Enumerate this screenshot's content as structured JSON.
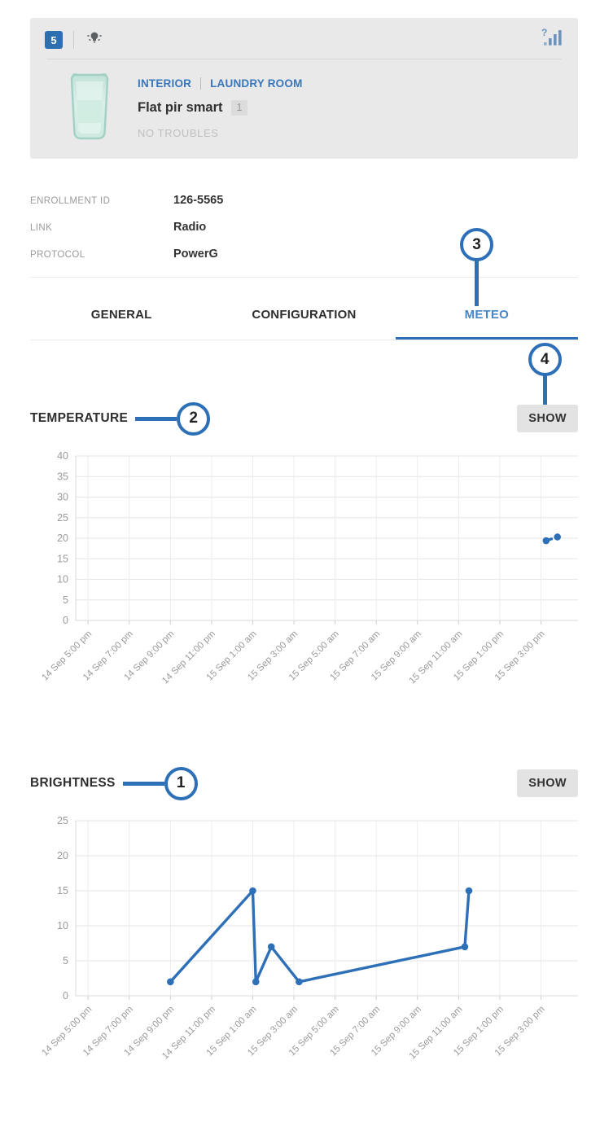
{
  "colors": {
    "accent": "#2e70b8",
    "tab_active": "#4486c8",
    "chart_line": "#2e70b8",
    "header_card_bg": "#e9e9e9",
    "count_badge_bg": "#2e6fb0",
    "signal_icon_blue": "#6e93bd",
    "grid_gray": "#e6e6e6"
  },
  "header": {
    "count_badge": "5",
    "bulb_icon": "bulb-icon",
    "signal_icon": "signal-question-icon",
    "zone_group": "INTERIOR",
    "zone_room": "LAUNDRY ROOM",
    "device_name": "Flat pir smart",
    "device_number_badge": "1",
    "status": "NO TROUBLES"
  },
  "details": [
    {
      "label": "ENROLLMENT ID",
      "value": "126-5565"
    },
    {
      "label": "LINK",
      "value": "Radio"
    },
    {
      "label": "PROTOCOL",
      "value": "PowerG"
    }
  ],
  "tabs": [
    {
      "label": "GENERAL",
      "active": false
    },
    {
      "label": "CONFIGURATION",
      "active": false
    },
    {
      "label": "METEO",
      "active": true
    }
  ],
  "annotations": {
    "brightness_title": "1",
    "temperature_title": "2",
    "meteo_tab": "3",
    "temperature_show": "4"
  },
  "chart_data": [
    {
      "id": "temperature",
      "type": "line",
      "title": "TEMPERATURE",
      "show_button_label": "SHOW",
      "xlabel": "",
      "ylabel": "",
      "ylim": [
        0,
        40
      ],
      "yticks": [
        0,
        5,
        10,
        15,
        20,
        25,
        30,
        35,
        40
      ],
      "grid": true,
      "legend": "none",
      "line_style": "dashed",
      "color": "#2e70b8",
      "x_tick_labels": [
        "14 Sep 5:00 pm",
        "14 Sep 7:00 pm",
        "14 Sep 9:00 pm",
        "14 Sep 11:00 pm",
        "15 Sep 1:00 am",
        "15 Sep 3:00 am",
        "15 Sep 5:00 am",
        "15 Sep 7:00 am",
        "15 Sep 9:00 am",
        "15 Sep 11:00 am",
        "15 Sep 1:00 pm",
        "15 Sep 3:00 pm"
      ],
      "x_tick_offset_hours": [
        0,
        2,
        4,
        6,
        8,
        10,
        12,
        14,
        16,
        18,
        20,
        22
      ],
      "x_range_hours": [
        -0.6,
        23.8
      ],
      "points": [
        {
          "time": "15 Sep ~3:15 pm",
          "offset_hours": 22.25,
          "value": 19.4
        },
        {
          "time": "15 Sep ~3:50 pm",
          "offset_hours": 22.8,
          "value": 20.3
        }
      ]
    },
    {
      "id": "brightness",
      "type": "line",
      "title": "BRIGHTNESS",
      "show_button_label": "SHOW",
      "xlabel": "",
      "ylabel": "",
      "ylim": [
        0,
        25
      ],
      "yticks": [
        0,
        5,
        10,
        15,
        20,
        25
      ],
      "grid": true,
      "legend": "none",
      "line_style": "solid",
      "color": "#2e70b8",
      "x_tick_labels": [
        "14 Sep 5:00 pm",
        "14 Sep 7:00 pm",
        "14 Sep 9:00 pm",
        "14 Sep 11:00 pm",
        "15 Sep 1:00 am",
        "15 Sep 3:00 am",
        "15 Sep 5:00 am",
        "15 Sep 7:00 am",
        "15 Sep 9:00 am",
        "15 Sep 11:00 am",
        "15 Sep 1:00 pm",
        "15 Sep 3:00 pm"
      ],
      "x_tick_offset_hours": [
        0,
        2,
        4,
        6,
        8,
        10,
        12,
        14,
        16,
        18,
        20,
        22
      ],
      "x_range_hours": [
        -0.6,
        23.8
      ],
      "points": [
        {
          "time": "14 Sep 9:00 pm",
          "offset_hours": 4,
          "value": 2
        },
        {
          "time": "15 Sep 1:00 am",
          "offset_hours": 8,
          "value": 15
        },
        {
          "time": "15 Sep ~1:10 am",
          "offset_hours": 8.15,
          "value": 2
        },
        {
          "time": "15 Sep ~1:55 am",
          "offset_hours": 8.9,
          "value": 7
        },
        {
          "time": "15 Sep ~3:15 am",
          "offset_hours": 10.25,
          "value": 2
        },
        {
          "time": "15 Sep ~11:15 am",
          "offset_hours": 18.3,
          "value": 7
        },
        {
          "time": "15 Sep ~11:30 am",
          "offset_hours": 18.5,
          "value": 15
        }
      ]
    }
  ]
}
